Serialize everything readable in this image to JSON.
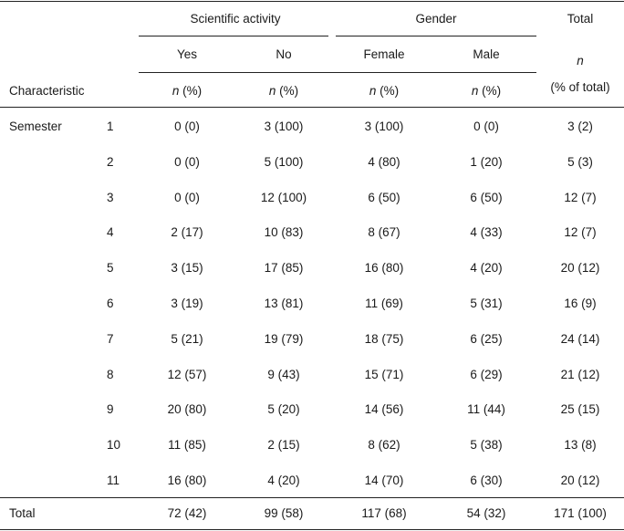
{
  "table": {
    "groups": {
      "scientific": "Scientific activity",
      "gender": "Gender",
      "total": "Total"
    },
    "subheaders": {
      "yes": "Yes",
      "no": "No",
      "female": "Female",
      "male": "Male"
    },
    "stub_header": "Characteristic",
    "unit_n": "n",
    "unit_pct": " (%)",
    "total_unit_n": "n",
    "total_unit_pct": "(% of total)",
    "row_group": "Semester",
    "rows": [
      {
        "label": "1",
        "yes": "0 (0)",
        "no": "3 (100)",
        "female": "3 (100)",
        "male": "0 (0)",
        "total": "3 (2)"
      },
      {
        "label": "2",
        "yes": "0 (0)",
        "no": "5 (100)",
        "female": "4 (80)",
        "male": "1 (20)",
        "total": "5 (3)"
      },
      {
        "label": "3",
        "yes": "0 (0)",
        "no": "12 (100)",
        "female": "6 (50)",
        "male": "6 (50)",
        "total": "12 (7)"
      },
      {
        "label": "4",
        "yes": "2 (17)",
        "no": "10 (83)",
        "female": "8 (67)",
        "male": "4 (33)",
        "total": "12 (7)"
      },
      {
        "label": "5",
        "yes": "3 (15)",
        "no": "17 (85)",
        "female": "16 (80)",
        "male": "4 (20)",
        "total": "20 (12)"
      },
      {
        "label": "6",
        "yes": "3 (19)",
        "no": "13 (81)",
        "female": "11 (69)",
        "male": "5 (31)",
        "total": "16 (9)"
      },
      {
        "label": "7",
        "yes": "5 (21)",
        "no": "19 (79)",
        "female": "18 (75)",
        "male": "6 (25)",
        "total": "24 (14)"
      },
      {
        "label": "8",
        "yes": "12 (57)",
        "no": "9 (43)",
        "female": "15 (71)",
        "male": "6 (29)",
        "total": "21 (12)"
      },
      {
        "label": "9",
        "yes": "20 (80)",
        "no": "5 (20)",
        "female": "14 (56)",
        "male": "11 (44)",
        "total": "25 (15)"
      },
      {
        "label": "10",
        "yes": "11 (85)",
        "no": "2 (15)",
        "female": "8 (62)",
        "male": "5 (38)",
        "total": "13 (8)"
      },
      {
        "label": "11",
        "yes": "16 (80)",
        "no": "4 (20)",
        "female": "14 (70)",
        "male": "6 (30)",
        "total": "20 (12)"
      }
    ],
    "total_row": {
      "label": "Total",
      "yes": "72 (42)",
      "no": "99 (58)",
      "female": "117 (68)",
      "male": "54 (32)",
      "total": "171 (100)"
    }
  }
}
